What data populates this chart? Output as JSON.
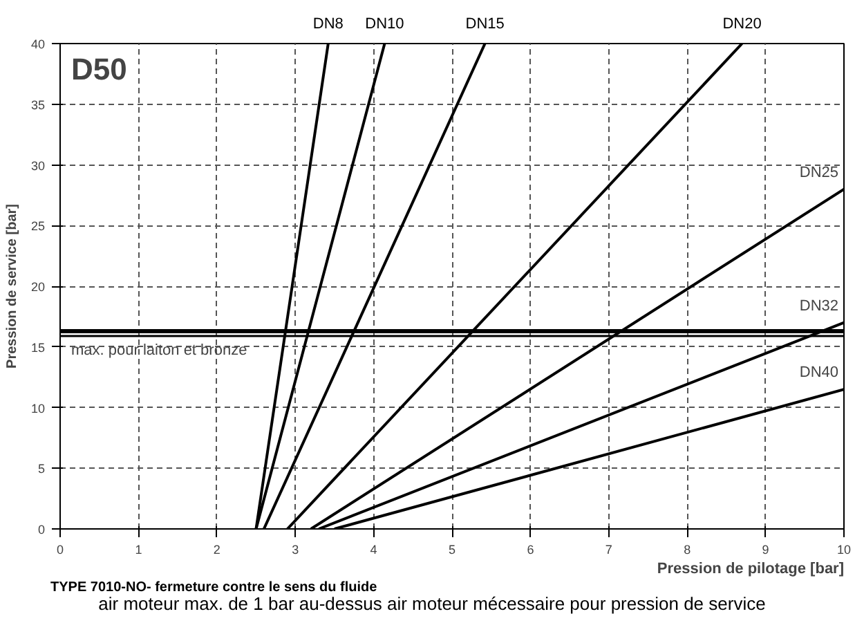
{
  "chart_data": {
    "type": "line",
    "title": "D50",
    "xlabel": "Pression de pilotage [bar]",
    "ylabel": "Pression de service [bar]",
    "xlim": [
      0,
      10
    ],
    "ylim": [
      0,
      40
    ],
    "xticks": [
      0,
      1,
      2,
      3,
      4,
      5,
      6,
      7,
      8,
      9,
      10
    ],
    "yticks": [
      0,
      5,
      10,
      15,
      20,
      25,
      30,
      35,
      40
    ],
    "grid": true,
    "marker": "none",
    "line_style": "solid",
    "series": [
      {
        "name": "DN8",
        "color": "#000000",
        "x": [
          2.5,
          3.42
        ],
        "values": [
          0,
          40
        ]
      },
      {
        "name": "DN10",
        "color": "#000000",
        "x": [
          2.5,
          4.14
        ],
        "values": [
          0,
          40
        ]
      },
      {
        "name": "DN15",
        "color": "#000000",
        "x": [
          2.6,
          5.42
        ],
        "values": [
          0,
          40
        ]
      },
      {
        "name": "DN20",
        "color": "#000000",
        "x": [
          2.9,
          8.7
        ],
        "values": [
          0,
          40
        ]
      },
      {
        "name": "DN25",
        "color": "#000000",
        "x": [
          3.2,
          10
        ],
        "values": [
          0,
          28
        ]
      },
      {
        "name": "DN32",
        "color": "#000000",
        "x": [
          3.3,
          10
        ],
        "values": [
          0,
          17
        ]
      },
      {
        "name": "DN40",
        "color": "#000000",
        "x": [
          3.5,
          10
        ],
        "values": [
          0,
          11.5
        ]
      }
    ],
    "ref_lines": [
      {
        "axis": "y",
        "value": 16.3,
        "label": "max. pour laiton et bronze",
        "color": "#000000"
      },
      {
        "axis": "y",
        "value": 15.9,
        "label": null,
        "color": "#000000"
      }
    ],
    "annotations": [
      "TYPE 7010-NO- fermeture contre le sens du fluide",
      "air moteur max. de 1 bar au-dessus air moteur mécessaire pour pression de service"
    ]
  }
}
